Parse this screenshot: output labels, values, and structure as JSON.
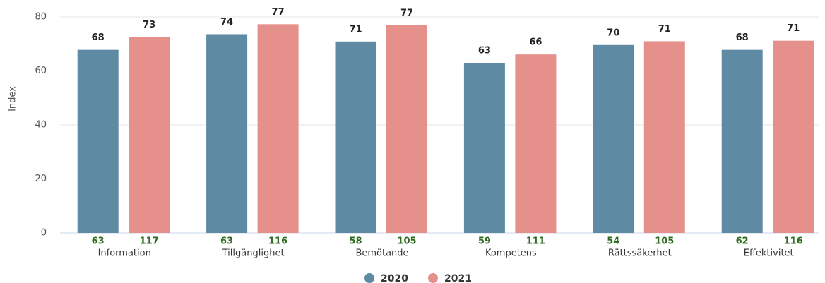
{
  "chart_data": {
    "type": "bar",
    "y_label": "Index",
    "categories": [
      "Information",
      "Tillgänglighet",
      "Bemötande",
      "Kompetens",
      "Rättssäkerhet",
      "Effektivitet"
    ],
    "series": [
      {
        "name": "2020",
        "color": "#5f8aa3",
        "values": [
          67.8,
          73.6,
          70.9,
          63,
          69.6,
          67.8
        ],
        "value_labels": [
          "68",
          "74",
          "71",
          "63",
          "70",
          "68"
        ],
        "counts": [
          63,
          63,
          58,
          59,
          54,
          62
        ]
      },
      {
        "name": "2021",
        "color": "#e5908b",
        "values": [
          72.6,
          77.3,
          76.9,
          66.1,
          71,
          71.2
        ],
        "value_labels": [
          "73",
          "77",
          "77",
          "66",
          "71",
          "71"
        ],
        "counts": [
          117,
          116,
          105,
          111,
          105,
          116
        ]
      }
    ],
    "ylim": [
      0,
      80
    ],
    "yticks": [
      0,
      20,
      40,
      60,
      80
    ],
    "grid": true,
    "legend": "bottom"
  }
}
